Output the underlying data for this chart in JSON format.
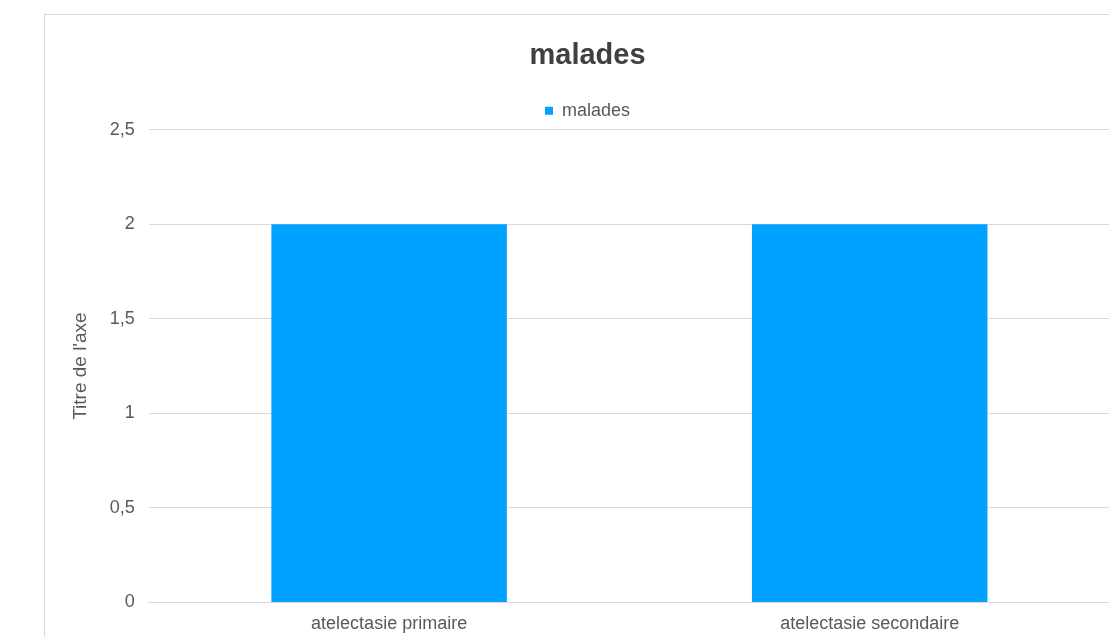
{
  "chart_data": {
    "type": "bar",
    "title": "malades",
    "ylabel": "Titre de l'axe",
    "categories": [
      "atelectasie primaire",
      "atelectasie secondaire"
    ],
    "series": [
      {
        "name": "malades",
        "color": "#00a2ff",
        "values": [
          2,
          2
        ]
      }
    ],
    "ylim": [
      0,
      2.5
    ],
    "yticks": [
      0,
      {
        "value": 0.5,
        "label": "0,5"
      },
      1,
      {
        "value": 1.5,
        "label": "1,5"
      },
      2,
      {
        "value": 2.5,
        "label": "2,5"
      }
    ],
    "grid": "y",
    "legend": "top"
  }
}
